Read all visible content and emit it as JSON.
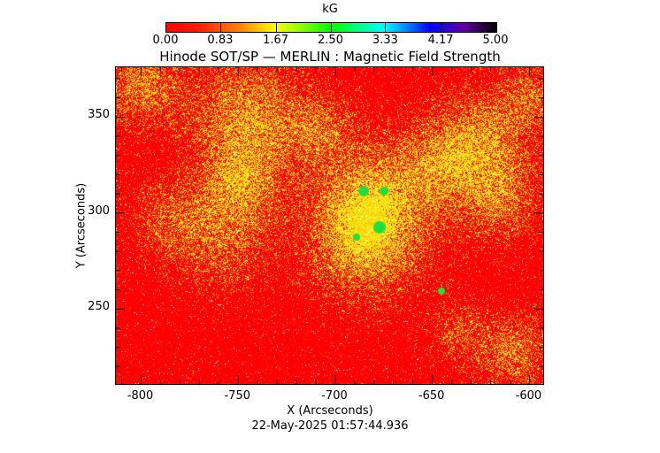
{
  "chart_data": {
    "type": "heatmap",
    "title": "Hinode SOT/SP — MERLIN : Magnetic Field Strength",
    "xlabel": "X (Arcseconds)",
    "ylabel": "Y (Arcseconds)",
    "xlim": [
      -813,
      -592
    ],
    "ylim": [
      210,
      376
    ],
    "xticks": [
      "-800",
      "-750",
      "-700",
      "-650",
      "-600"
    ],
    "xtick_values": [
      -800,
      -750,
      -700,
      -650,
      -600
    ],
    "yticks": [
      "250",
      "300",
      "350"
    ],
    "ytick_values": [
      250,
      300,
      350
    ],
    "colorbar": {
      "label": "kG",
      "range": [
        0,
        5
      ],
      "ticks": [
        "0.00",
        "0.83",
        "1.67",
        "2.50",
        "3.33",
        "4.17",
        "5.00"
      ],
      "tick_values": [
        0,
        0.83,
        1.67,
        2.5,
        3.33,
        4.17,
        5.0
      ],
      "colormap": [
        "#ff0000",
        "#ff8000",
        "#ffff00",
        "#00ff00",
        "#00ffff",
        "#0000ff",
        "#6000a0",
        "#000000"
      ]
    },
    "timestamp": "22-May-2025 01:57:44.936"
  }
}
